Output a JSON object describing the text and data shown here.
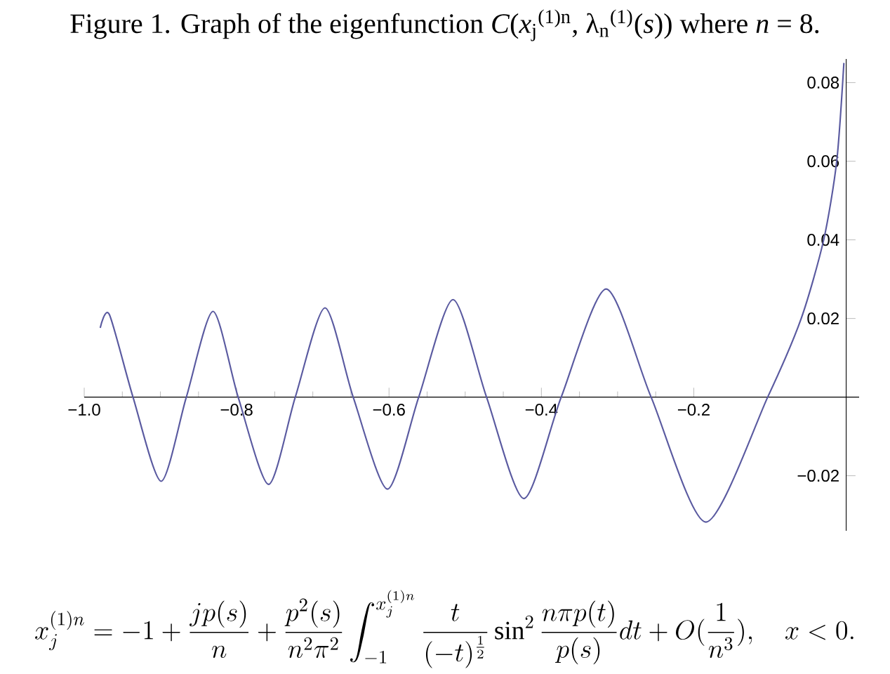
{
  "chart_data": {
    "type": "line",
    "title": "Figure 1. Graph of the eigenfunction *C*(*x*$_{j}$$^{(1)n}$, λ$_{n}$$^{(1)}$(*s*)) where *n* = 8.",
    "annotations": [
      "x_j^{(1)n} = -1 + \\frac{jp(s)}{n} + \\frac{p^2(s)}{n^2\\pi^2}\\int_{-1}^{x_j^{(1)n}} \\frac{t}{(-t)^{\\frac{1}{2}}}\\sin^2\\frac{n\\pi p(t)}{p(s)}dt + O(\\frac{1}{n^3}),\\quad x<0."
    ],
    "x": [
      -0.979,
      -0.967,
      -0.936,
      -0.899,
      -0.866,
      -0.831,
      -0.798,
      -0.758,
      -0.723,
      -0.684,
      -0.647,
      -0.602,
      -0.561,
      -0.516,
      -0.472,
      -0.423,
      -0.374,
      -0.315,
      -0.256,
      -0.184,
      -0.103,
      -0.059,
      -0.0295,
      -0.0124,
      -0.003
    ],
    "values": [
      0.0176,
      0.021,
      0,
      -0.0214,
      0,
      0.0218,
      0,
      -0.0222,
      0,
      0.0227,
      0,
      -0.0234,
      0,
      0.0248,
      0,
      -0.0258,
      0,
      0.0275,
      0,
      -0.0318,
      0,
      0.02,
      0.04,
      0.06,
      0.085
    ],
    "color": "#5a5aa0",
    "xlim": [
      -1.0,
      0.017
    ],
    "ylim": [
      -0.034,
      0.086
    ],
    "xticks": [
      {
        "value": -1.0,
        "label": "−1.0"
      },
      {
        "value": -0.8,
        "label": "−0.8"
      },
      {
        "value": -0.6,
        "label": "−0.6"
      },
      {
        "value": -0.4,
        "label": "−0.4"
      },
      {
        "value": -0.2,
        "label": "−0.2"
      }
    ],
    "yticks": [
      {
        "value": -0.02,
        "label": "−0.02"
      },
      0.02,
      0.04,
      0.06,
      0.08
    ]
  }
}
